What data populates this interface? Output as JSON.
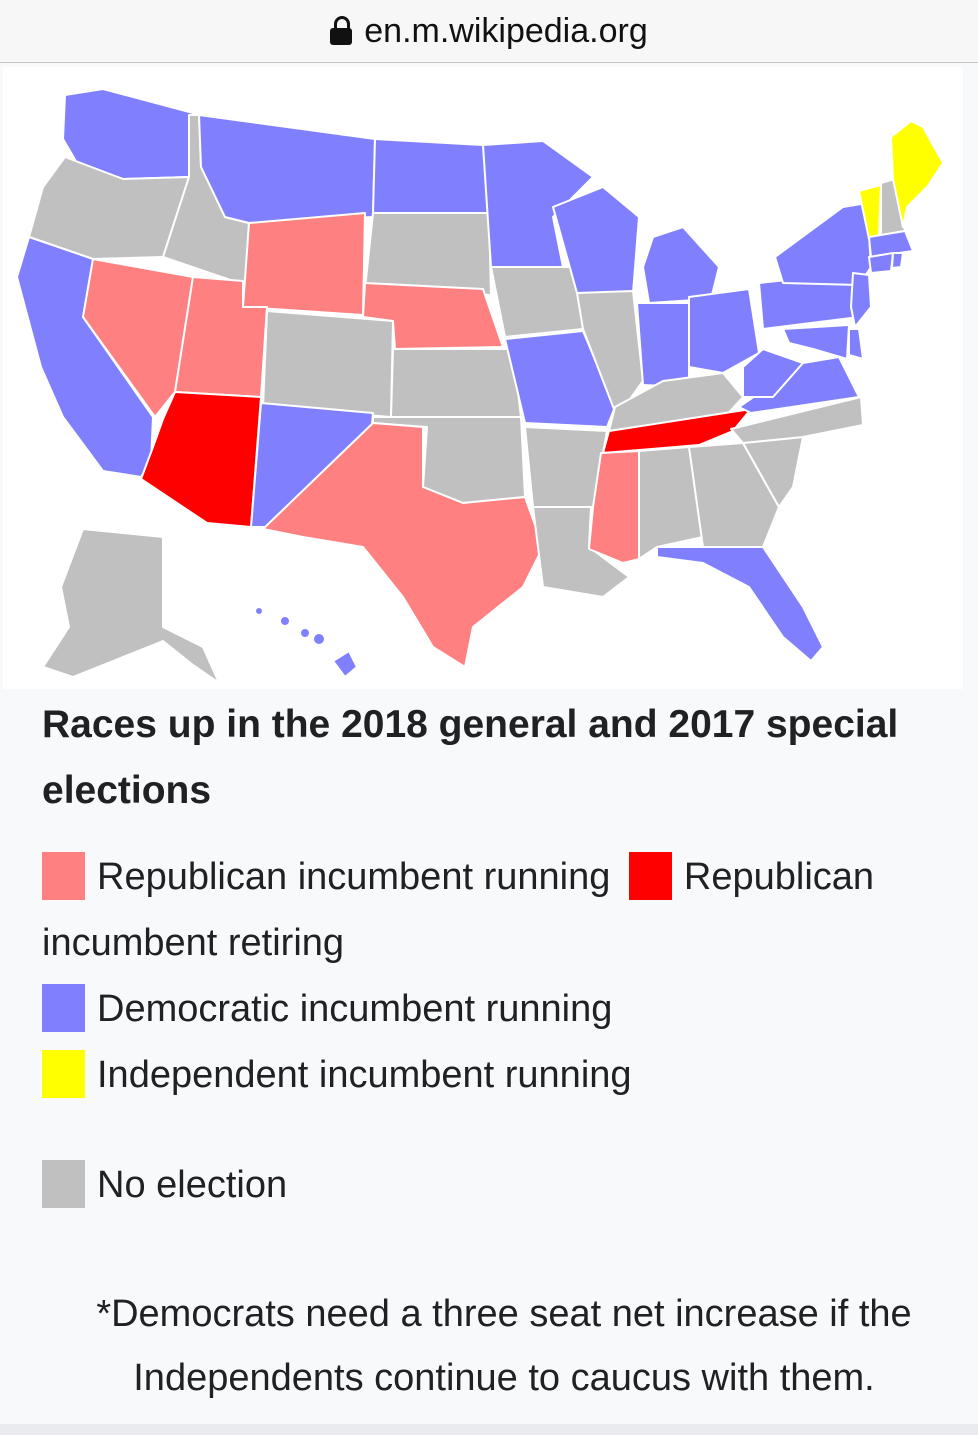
{
  "browser": {
    "url": "en.m.wikipedia.org",
    "lock_icon": "lock-icon"
  },
  "colors": {
    "republican_running": "#ff8080",
    "republican_retiring": "#ff0000",
    "democratic_running": "#8080ff",
    "independent_running": "#ffff00",
    "no_election": "#c0c0c0"
  },
  "caption": "Races up in the 2018 general and 2017 special elections",
  "legend": [
    {
      "key": "republican_running",
      "label": "Republican incumbent running"
    },
    {
      "key": "republican_retiring",
      "label": "Republican incumbent retiring"
    },
    {
      "key": "democratic_running",
      "label": "Democratic incumbent running"
    },
    {
      "key": "independent_running",
      "label": "Independent incumbent running"
    },
    {
      "key": "no_election",
      "label": "No election"
    }
  ],
  "footnote": "*Democrats need a three seat net increase if the Independents continue to caucus with them.",
  "states": {
    "WA": "democratic_running",
    "OR": "no_election",
    "CA": "democratic_running",
    "ID": "no_election",
    "NV": "republican_running",
    "MT": "democratic_running",
    "WY": "republican_running",
    "UT": "republican_running",
    "AZ": "republican_retiring",
    "CO": "no_election",
    "NM": "democratic_running",
    "ND": "democratic_running",
    "SD": "no_election",
    "NE": "republican_running",
    "KS": "no_election",
    "OK": "no_election",
    "TX": "republican_running",
    "MN": "democratic_running",
    "IA": "no_election",
    "MO": "democratic_running",
    "AR": "no_election",
    "LA": "no_election",
    "WI": "democratic_running",
    "IL": "no_election",
    "MI": "democratic_running",
    "IN": "democratic_running",
    "OH": "democratic_running",
    "KY": "no_election",
    "TN": "republican_retiring",
    "MS": "republican_running",
    "AL": "no_election",
    "GA": "no_election",
    "FL": "democratic_running",
    "SC": "no_election",
    "NC": "no_election",
    "VA": "democratic_running",
    "WV": "democratic_running",
    "PA": "democratic_running",
    "NY": "democratic_running",
    "VT": "independent_running",
    "NH": "no_election",
    "ME": "independent_running",
    "MA": "democratic_running",
    "CT": "democratic_running",
    "RI": "democratic_running",
    "NJ": "democratic_running",
    "DE": "democratic_running",
    "MD": "democratic_running",
    "AK": "no_election",
    "HI": "democratic_running"
  }
}
